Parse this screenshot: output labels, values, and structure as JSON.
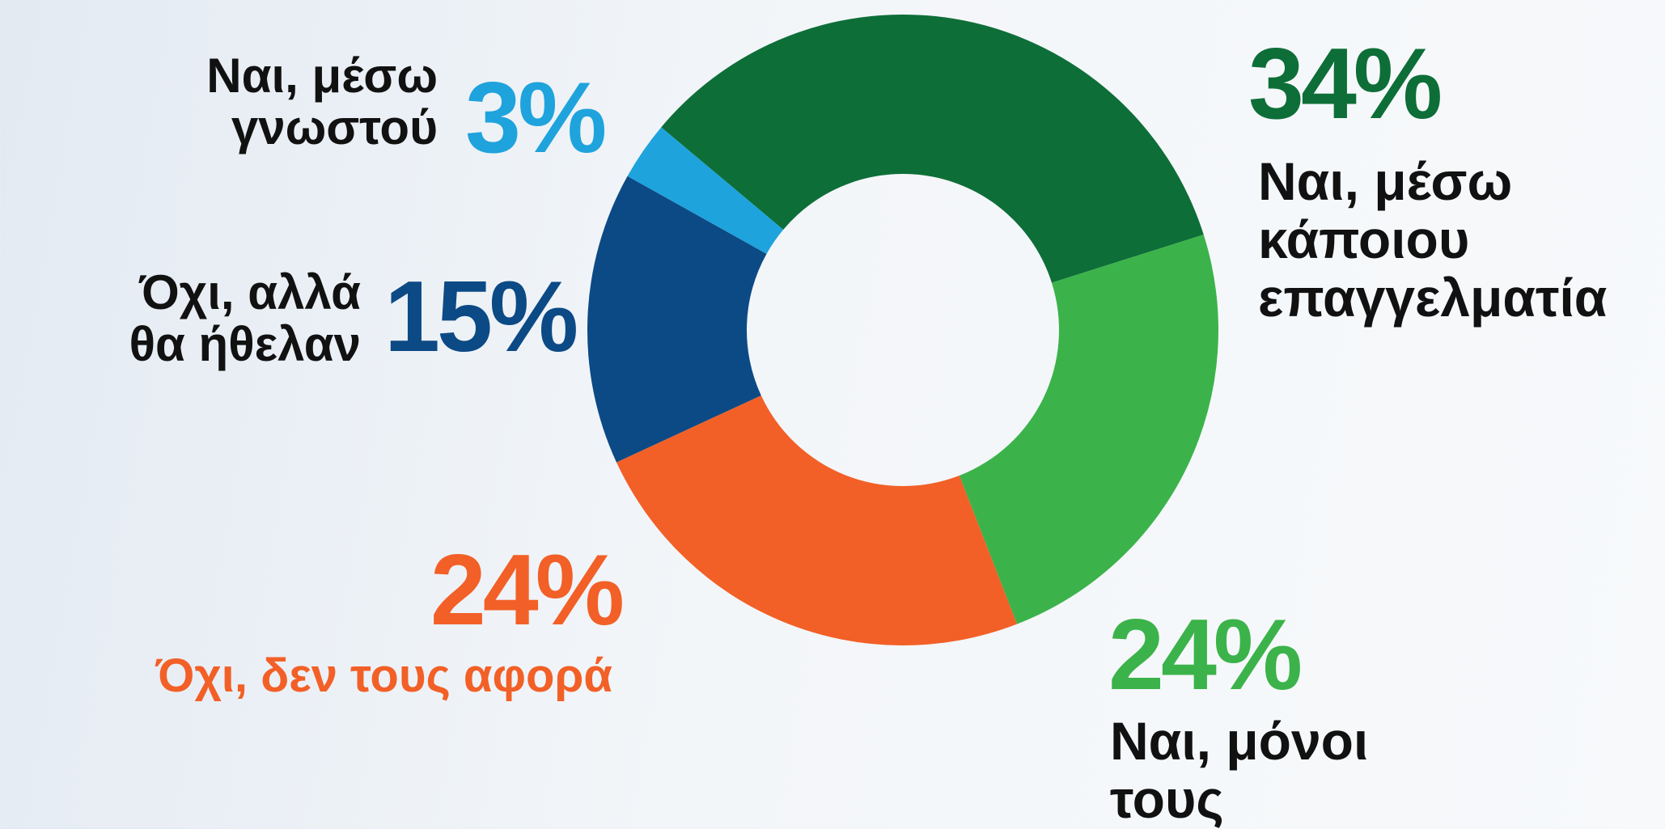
{
  "chart_data": {
    "type": "pie",
    "categories": [
      "Ναι, μέσω\nκάποιου\nεπαγγελματία",
      "Ναι, μόνοι\nτους",
      "Όχι, δεν τους αφορά",
      "Όχι, αλλά\nθα ήθελαν",
      "Ναι, μέσω\nγνωστού"
    ],
    "values": [
      34,
      24,
      24,
      15,
      3
    ],
    "value_labels": [
      "34%",
      "24%",
      "24%",
      "15%",
      "3%"
    ],
    "colors": [
      "#0e6e38",
      "#3bb34a",
      "#f26027",
      "#0c4a85",
      "#1fa3dc"
    ]
  }
}
